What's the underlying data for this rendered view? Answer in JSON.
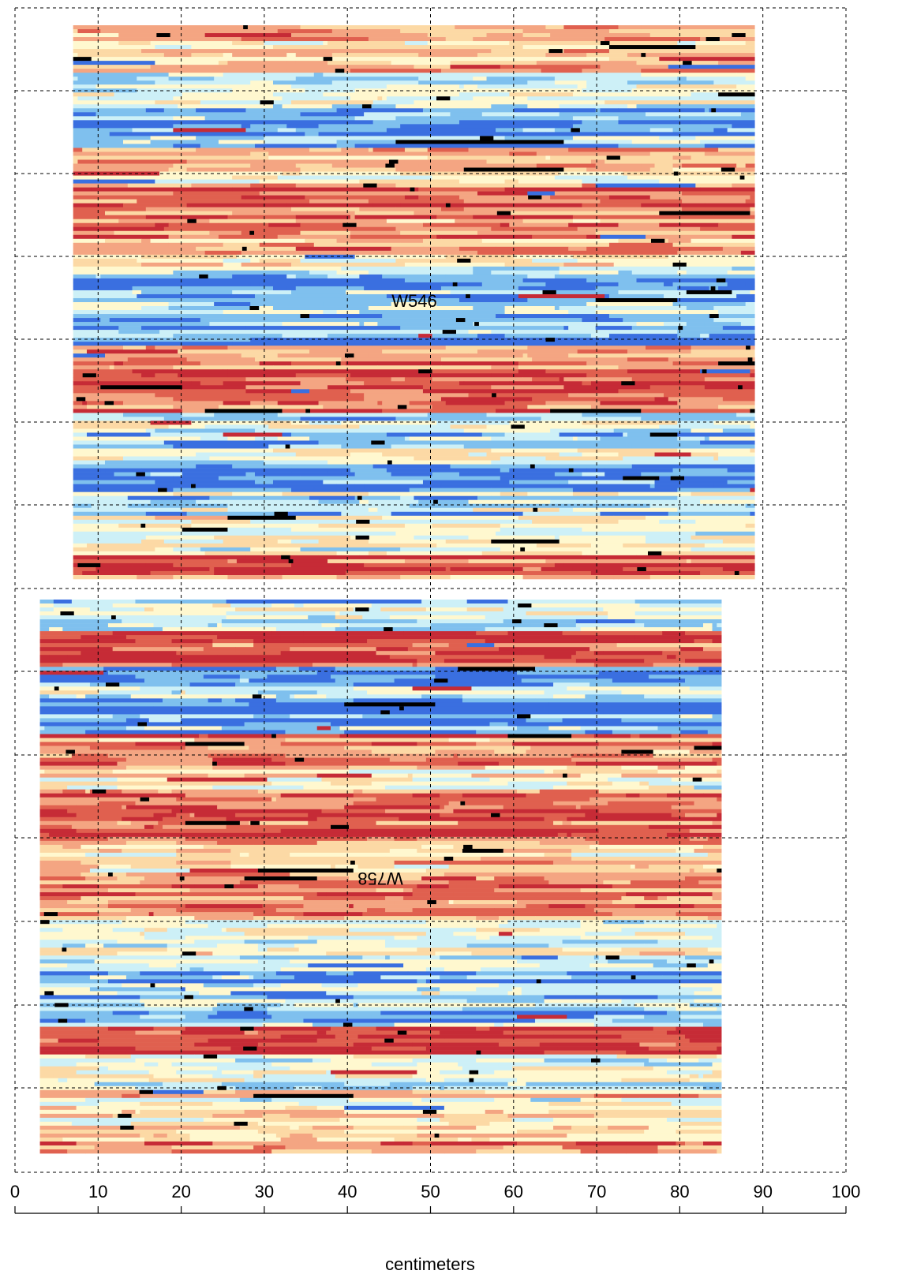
{
  "chart_data": {
    "type": "heatmap",
    "xlabel": "centimeters",
    "xlim": [
      0,
      100
    ],
    "x_ticks": [
      0,
      10,
      20,
      30,
      40,
      50,
      60,
      70,
      80,
      90,
      100
    ],
    "grid": true,
    "grid_style": "dashed",
    "colormap": [
      "#3a6fe0",
      "#7fc0ee",
      "#cdf0f7",
      "#fff8cf",
      "#fcd9a5",
      "#f4a582",
      "#e0604f",
      "#c62b36",
      "#000000"
    ],
    "panels": [
      {
        "label": "W546",
        "label_orientation": "upright",
        "x_range": [
          7,
          89
        ],
        "row_structure": "horizontal bands of alternating warm and cool values with scattered black outliers"
      },
      {
        "label": "W758",
        "label_orientation": "rotated 180 degrees",
        "x_range": [
          3,
          85
        ],
        "row_structure": "horizontal bands of alternating warm and cool values with scattered black outliers"
      }
    ]
  }
}
